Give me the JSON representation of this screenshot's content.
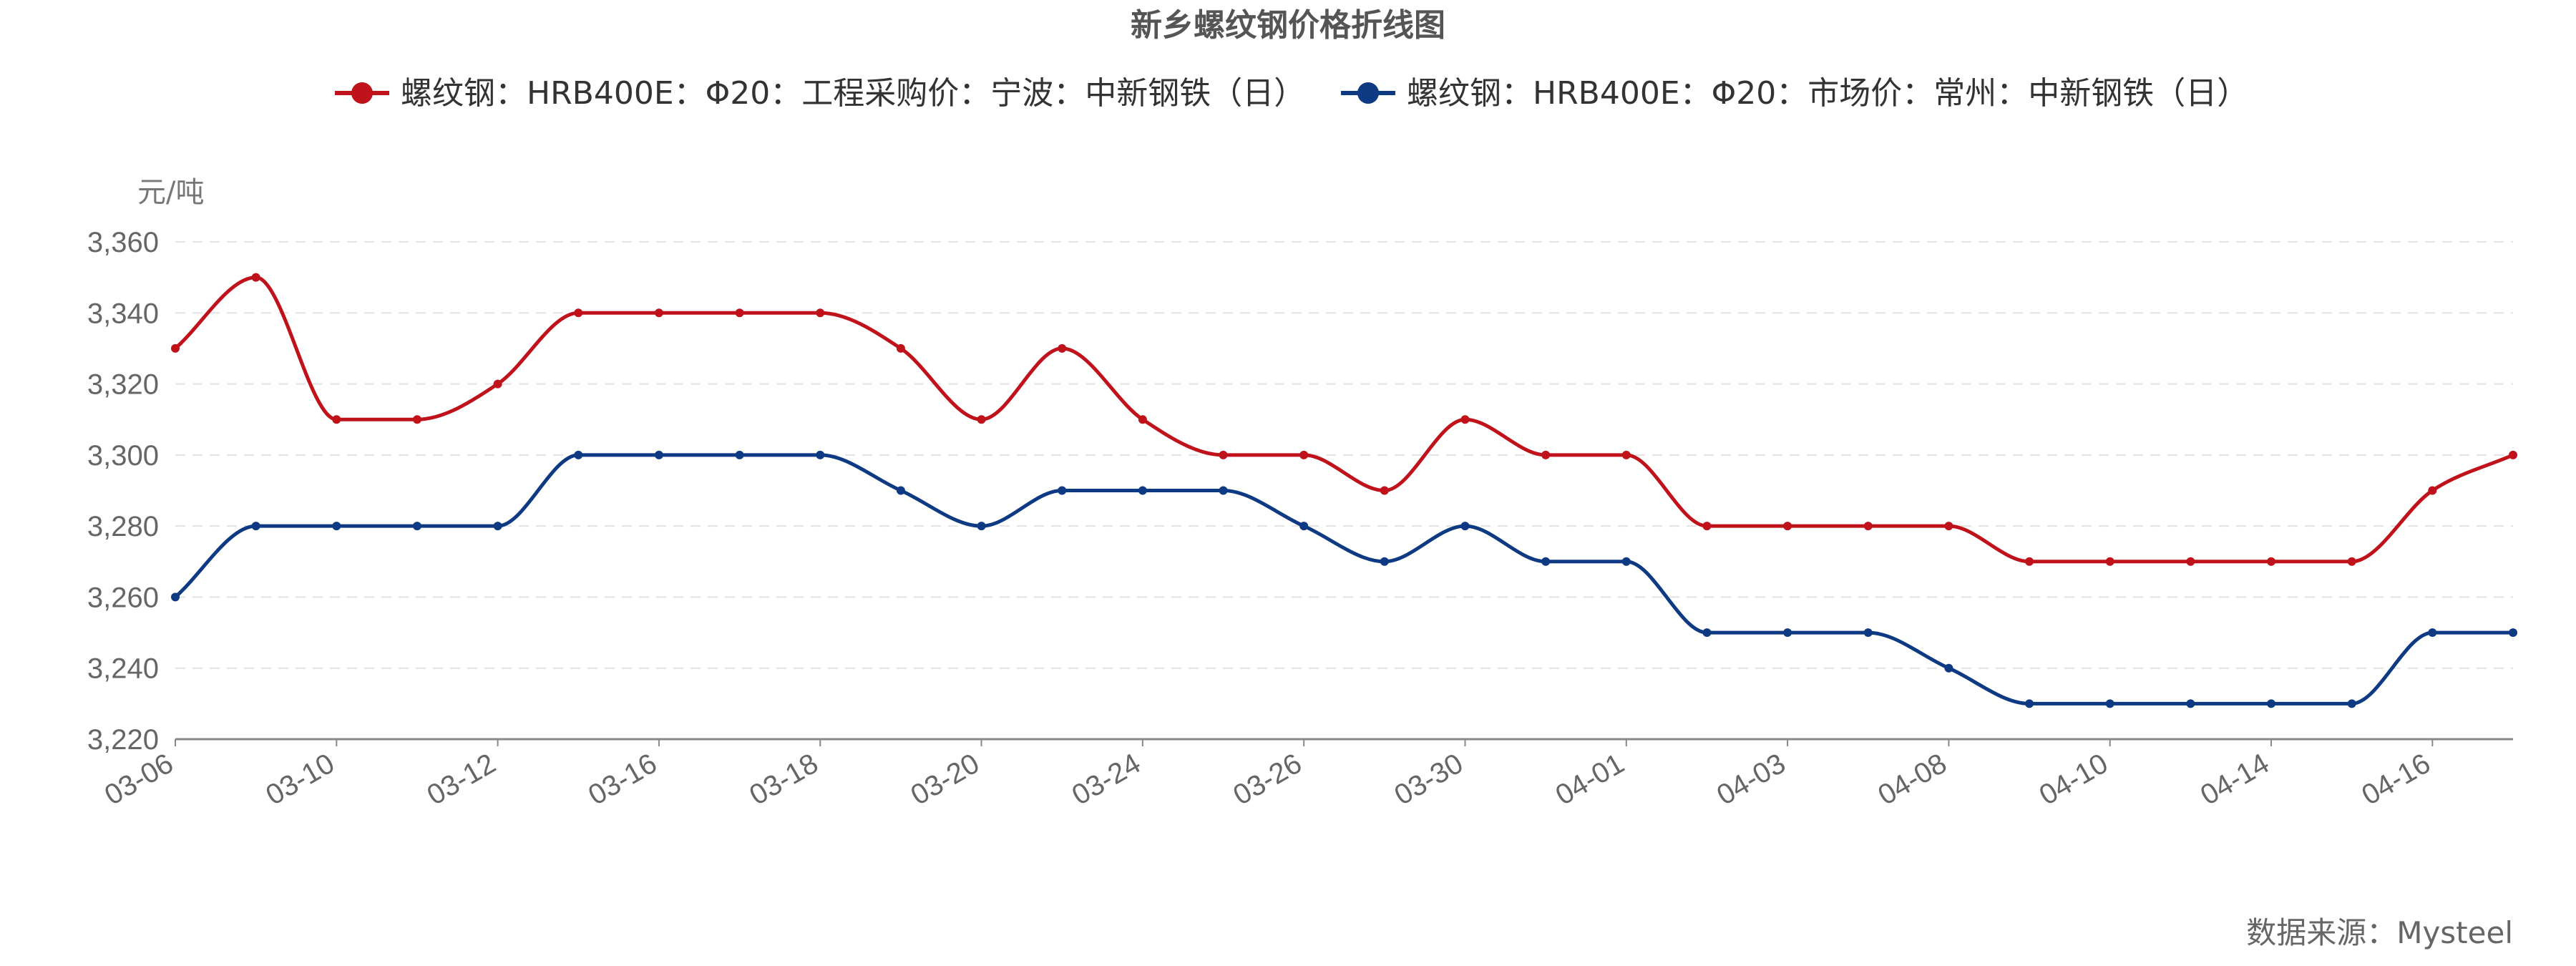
{
  "chart_data": {
    "type": "line",
    "title": "新乡螺纹钢价格折线图",
    "y_unit": "元/吨",
    "ylim": [
      3220,
      3360
    ],
    "y_ticks": [
      3220,
      3240,
      3260,
      3280,
      3300,
      3320,
      3340,
      3360
    ],
    "y_tick_labels": [
      "3,220",
      "3,240",
      "3,260",
      "3,280",
      "3,300",
      "3,320",
      "3,340",
      "3,360"
    ],
    "x_tick_labels": [
      "03-06",
      "03-10",
      "03-12",
      "03-16",
      "03-18",
      "03-20",
      "03-24",
      "03-26",
      "03-30",
      "04-01",
      "04-03",
      "04-08",
      "04-10",
      "04-14",
      "04-16"
    ],
    "grid": true,
    "legend_position": "top-center",
    "series": [
      {
        "name": "螺纹钢：HRB400E：Φ20：工程采购价：宁波：中新钢铁（日）",
        "color": "#c0121b",
        "values": [
          3330,
          3350,
          3310,
          3310,
          3320,
          3340,
          3340,
          3340,
          3340,
          3330,
          3310,
          3330,
          3310,
          3300,
          3300,
          3290,
          3310,
          3300,
          3300,
          3280,
          3280,
          3280,
          3280,
          3270,
          3270,
          3270,
          3270,
          3270,
          3290,
          3300
        ]
      },
      {
        "name": "螺纹钢：HRB400E：Φ20：市场价：常州：中新钢铁（日）",
        "color": "#0d3a82",
        "values": [
          3260,
          3280,
          3280,
          3280,
          3280,
          3300,
          3300,
          3300,
          3300,
          3290,
          3280,
          3290,
          3290,
          3290,
          3280,
          3270,
          3280,
          3270,
          3270,
          3250,
          3250,
          3250,
          3240,
          3230,
          3230,
          3230,
          3230,
          3230,
          3250,
          3250
        ]
      }
    ]
  },
  "source_label": "数据来源：Mysteel"
}
